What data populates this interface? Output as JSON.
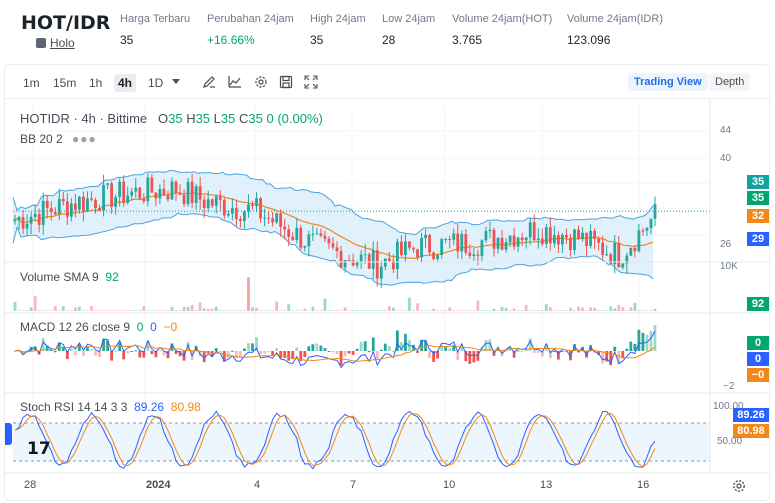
{
  "ticker": {
    "pair": "HOT/IDR",
    "coin_name": "Holo",
    "stats": [
      {
        "label": "Harga Terbaru",
        "value": "35",
        "up": false
      },
      {
        "label": "Perubahan 24jam",
        "value": "+16.66%",
        "up": true
      },
      {
        "label": "High 24jam",
        "value": "35",
        "up": false
      },
      {
        "label": "Low 24jam",
        "value": "28",
        "up": false
      },
      {
        "label": "Volume 24jam(HOT)",
        "value": "3.765",
        "up": false
      },
      {
        "label": "Volume 24jam(IDR)",
        "value": "123.096",
        "up": false
      }
    ]
  },
  "toolbar": {
    "timeframes": [
      "1m",
      "15m",
      "1h",
      "4h",
      "1D"
    ],
    "active_timeframe": "4h",
    "tools": [
      "draw-icon",
      "indicator-icon",
      "settings-icon",
      "save-icon",
      "fullscreen-icon"
    ],
    "trading_view_label": "Trading View",
    "depth_label": "Depth"
  },
  "legend": {
    "symbol": "HOTIDR · 4h · Bittime",
    "o_label": "O",
    "o": "35",
    "h_label": "H",
    "h": "35",
    "l_label": "L",
    "l": "35",
    "c_label": "C",
    "c": "35",
    "chg": "0 (0.00%)",
    "bb": "BB 20 2",
    "volume": "Volume SMA 9",
    "volume_val": "92",
    "macd": "MACD 12 26 close 9",
    "macd_v1": "0",
    "macd_v2": "0",
    "macd_v3": "−0",
    "stoch": "Stoch RSI 14 14 3 3",
    "stoch_k": "89.26",
    "stoch_d": "80.98"
  },
  "price_axis": [
    "44",
    "40",
    "35",
    "32",
    "29",
    "26"
  ],
  "price_tags": [
    {
      "value": "35",
      "color": "#0ea5a0"
    },
    {
      "value": "35",
      "color": "#03a66d"
    },
    {
      "value": "32",
      "color": "#f0881a"
    },
    {
      "value": "29",
      "color": "#2962ff"
    }
  ],
  "volume_axis": "10K",
  "volume_tag": "92",
  "macd_axis": "−2",
  "macd_tags": [
    {
      "value": "0",
      "color": "#03a66d"
    },
    {
      "value": "0",
      "color": "#2962ff"
    },
    {
      "value": "−0",
      "color": "#f0881a"
    }
  ],
  "stoch_axis": [
    "100.00",
    "50.00"
  ],
  "stoch_tags": [
    {
      "value": "89.26",
      "color": "#2962ff"
    },
    {
      "value": "80.98",
      "color": "#f0881a"
    }
  ],
  "x_axis": [
    {
      "label": "28",
      "bold": false
    },
    {
      "label": "2024",
      "bold": true
    },
    {
      "label": "4",
      "bold": false
    },
    {
      "label": "7",
      "bold": false
    },
    {
      "label": "10",
      "bold": false
    },
    {
      "label": "13",
      "bold": false
    },
    {
      "label": "16",
      "bold": false
    }
  ],
  "colors": {
    "up": "#26a69a",
    "down": "#ef5350",
    "bb_fill": "#ddeffb",
    "bb_line": "#4aa3df",
    "ma": "#f0881a",
    "macd": "#2962ff",
    "signal": "#f0881a"
  },
  "tv_logo": "17"
}
